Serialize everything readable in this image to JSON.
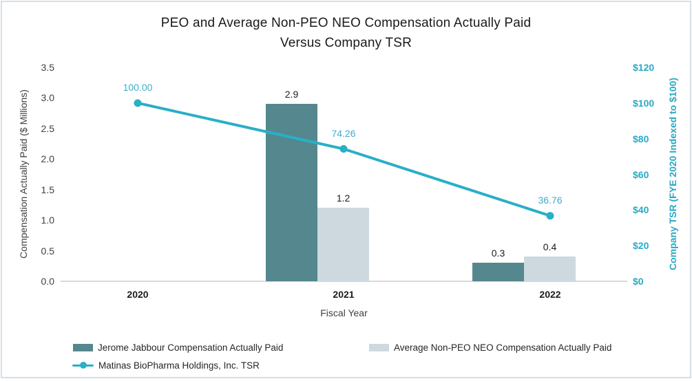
{
  "title": {
    "line1": "PEO and Average Non-PEO NEO Compensation Actually Paid",
    "line2": "Versus Company TSR"
  },
  "axes": {
    "left": {
      "title": "Compensation Actually Paid ($ Millions)",
      "range": [
        0,
        3.5
      ],
      "tick_values": [
        0,
        0.5,
        1.0,
        1.5,
        2.0,
        2.5,
        3.0,
        3.5
      ],
      "tick_labels": [
        "0.0",
        "0.5",
        "1.0",
        "1.5",
        "2.0",
        "2.5",
        "3.0",
        "3.5"
      ]
    },
    "right": {
      "title": "Company TSR (FYE 2020 Indexed to $100)",
      "range": [
        0,
        120
      ],
      "tick_values": [
        0,
        20,
        40,
        60,
        80,
        100,
        120
      ],
      "tick_labels": [
        "$0",
        "$20",
        "$40",
        "$60",
        "$80",
        "$100",
        "$120"
      ]
    },
    "x": {
      "title": "Fiscal Year"
    }
  },
  "chart_data": {
    "type": "combo",
    "categories": [
      "2020",
      "2021",
      "2022"
    ],
    "series": [
      {
        "name": "Jerome Jabbour Compensation Actually Paid",
        "type": "bar",
        "axis": "left",
        "color": "#55878E",
        "values": [
          null,
          2.9,
          0.3
        ],
        "labels": [
          "",
          "2.9",
          "0.3"
        ]
      },
      {
        "name": "Average Non-PEO NEO Compensation Actually Paid",
        "type": "bar",
        "axis": "left",
        "color": "#CDD9DE",
        "values": [
          null,
          1.2,
          0.4
        ],
        "labels": [
          "",
          "1.2",
          "0.4"
        ]
      },
      {
        "name": "Matinas BioPharma Holdings, Inc. TSR",
        "type": "line",
        "axis": "right",
        "color": "#29AFC8",
        "values": [
          100.0,
          74.26,
          36.76
        ],
        "labels": [
          "100.00",
          "74.26",
          "36.76"
        ]
      }
    ],
    "title": "PEO and Average Non-PEO NEO Compensation Actually Paid Versus Company TSR",
    "xlabel": "Fiscal Year",
    "ylabel_left": "Compensation Actually Paid ($ Millions)",
    "ylabel_right": "Company TSR (FYE 2020 Indexed to $100)",
    "ylim_left": [
      0,
      3.5
    ],
    "ylim_right": [
      0,
      120
    ],
    "grid": false,
    "legend_position": "bottom-left"
  },
  "legend": {
    "items": [
      {
        "label": "Jerome Jabbour Compensation Actually Paid",
        "marker": "square",
        "color": "#55878E"
      },
      {
        "label": "Average Non-PEO NEO Compensation Actually Paid",
        "marker": "square",
        "color": "#CDD9DE"
      },
      {
        "label": "Matinas BioPharma Holdings, Inc. TSR",
        "marker": "line-dot",
        "color": "#29AFC8"
      }
    ]
  },
  "colors": {
    "bar_peo": "#55878E",
    "bar_neo": "#CDD9DE",
    "tsr_line": "#29AFC8",
    "tsr_label_text": "#3CADC9",
    "right_axis_text": "#2AA9C4",
    "axis_line": "#D9D9D9",
    "text_dark": "#1B1B1B",
    "text_gray": "#3F3F3F",
    "frame_border": "#D4E0E7"
  }
}
